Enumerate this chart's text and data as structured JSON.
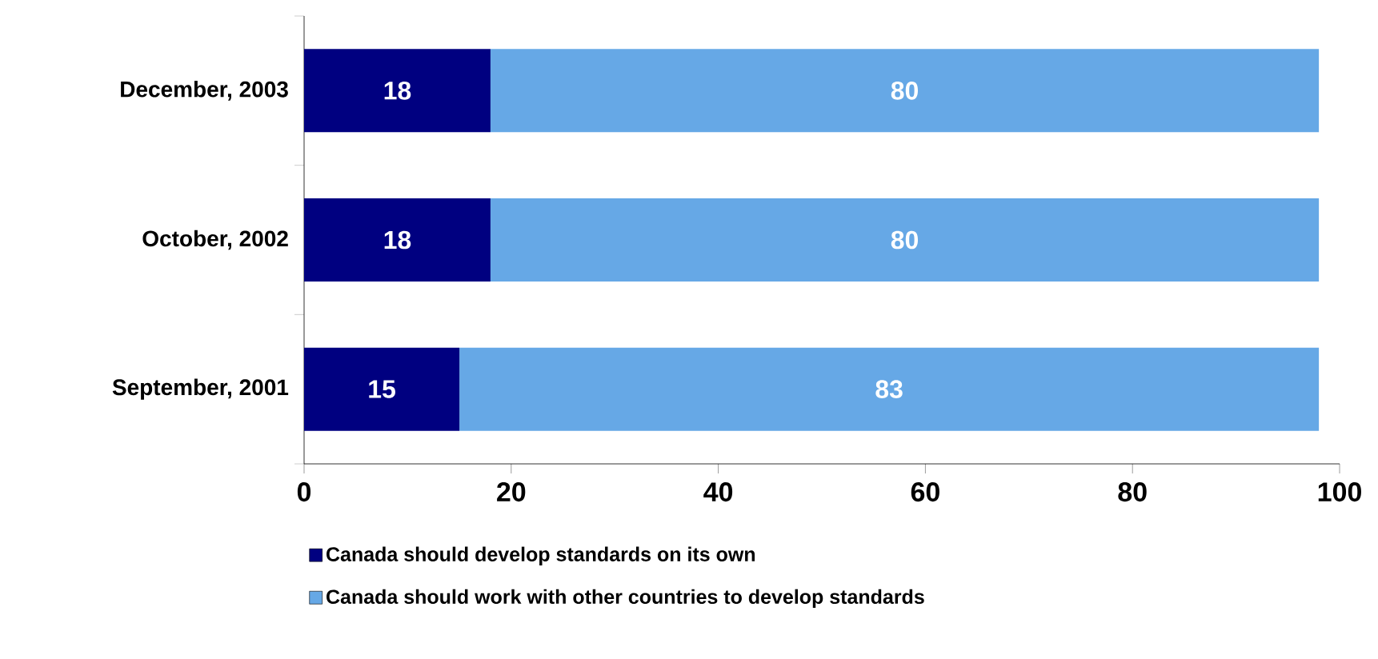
{
  "chart_data": {
    "type": "bar",
    "orientation": "horizontal",
    "stacked": true,
    "categories": [
      "December, 2003",
      "October, 2002",
      "September, 2001"
    ],
    "series": [
      {
        "name": "Canada should develop standards on its own",
        "color": "#000080",
        "values": [
          18,
          18,
          15
        ]
      },
      {
        "name": "Canada should work with other countries to develop standards",
        "color": "#66a8e6",
        "values": [
          80,
          80,
          83
        ]
      }
    ],
    "xlim": [
      0,
      100
    ],
    "xticks": [
      0,
      20,
      40,
      60,
      80,
      100
    ],
    "data_labels": true,
    "grid": false,
    "legend": "bottom"
  }
}
